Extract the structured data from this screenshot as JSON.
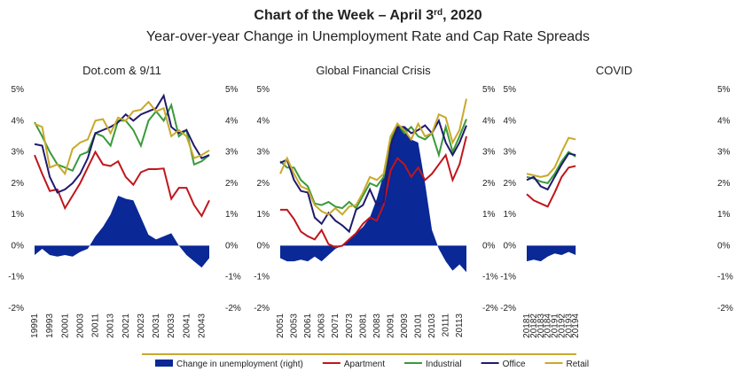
{
  "header": {
    "title_main": "Chart of the Week – April 3",
    "title_sup": "rd",
    "title_end": ", 2020",
    "subtitle": "Year-over-year Change in Unemployment Rate and Cap Rate Spreads"
  },
  "chart_data": [
    {
      "type": "line",
      "title": "Dot.com & 9/11",
      "categories": [
        "19991",
        null,
        "19993",
        null,
        "20001",
        null,
        "20003",
        null,
        "20011",
        null,
        "20013",
        null,
        "20021",
        null,
        "20023",
        null,
        "20031",
        null,
        "20033",
        null,
        "20041",
        null,
        "20043",
        null
      ],
      "ylim": [
        -2,
        5
      ],
      "y2lim": [
        -2,
        5
      ],
      "yticks": [
        {
          "value": 5,
          "label": "5%"
        },
        {
          "value": 4,
          "label": "4%"
        },
        {
          "value": 3,
          "label": "3%"
        },
        {
          "value": 2,
          "label": "2%"
        },
        {
          "value": 1,
          "label": "1%"
        },
        {
          "value": 0,
          "label": "0%"
        },
        {
          "value": -1,
          "label": "-1%"
        },
        {
          "value": -2,
          "label": "-2%"
        }
      ],
      "y2ticks": [
        {
          "value": 5,
          "label": "5%"
        },
        {
          "value": 4,
          "label": "4%"
        },
        {
          "value": 3,
          "label": "3%"
        },
        {
          "value": 2,
          "label": "2%"
        },
        {
          "value": 1,
          "label": "1%"
        },
        {
          "value": 0,
          "label": "0%"
        },
        {
          "value": -1,
          "label": "-1%"
        },
        {
          "value": -2,
          "label": "-2%"
        }
      ],
      "grid": false,
      "series": [
        {
          "name": "Change in unemployment (right)",
          "color": "#0a2896",
          "axis": "y2",
          "kind": "area",
          "values": [
            -0.3,
            -0.1,
            -0.3,
            -0.35,
            -0.3,
            -0.35,
            -0.2,
            -0.1,
            0.3,
            0.6,
            1.0,
            1.6,
            1.5,
            1.45,
            0.9,
            0.35,
            0.2,
            0.3,
            0.4,
            0.0,
            -0.3,
            -0.5,
            -0.7,
            -0.4
          ]
        },
        {
          "name": "Apartment",
          "color": "#c0161c",
          "values": [
            2.9,
            2.3,
            1.75,
            1.8,
            1.2,
            1.6,
            2.0,
            2.5,
            3.0,
            2.6,
            2.55,
            2.7,
            2.2,
            1.95,
            2.35,
            2.45,
            2.45,
            2.47,
            1.5,
            1.85,
            1.85,
            1.3,
            0.95,
            1.45
          ]
        },
        {
          "name": "Industrial",
          "color": "#3a9a3a",
          "values": [
            3.95,
            3.5,
            3.0,
            2.6,
            2.5,
            2.4,
            2.9,
            3.0,
            3.6,
            3.5,
            3.2,
            4.0,
            4.0,
            3.7,
            3.2,
            4.0,
            4.3,
            4.0,
            4.5,
            3.5,
            3.7,
            2.6,
            2.7,
            2.9
          ]
        },
        {
          "name": "Office",
          "color": "#201a6e",
          "values": [
            3.25,
            3.2,
            2.2,
            1.7,
            1.8,
            2.0,
            2.3,
            2.8,
            3.6,
            3.7,
            3.8,
            3.95,
            4.2,
            4.0,
            4.2,
            4.3,
            4.4,
            4.8,
            3.8,
            3.6,
            3.7,
            3.2,
            2.8,
            2.9
          ]
        },
        {
          "name": "Retail",
          "color": "#c9a92b",
          "values": [
            3.9,
            3.8,
            2.5,
            2.6,
            2.3,
            3.1,
            3.3,
            3.4,
            4.0,
            4.05,
            3.6,
            4.1,
            4.0,
            4.3,
            4.35,
            4.6,
            4.3,
            4.4,
            3.5,
            3.7,
            3.5,
            2.8,
            2.9,
            3.05
          ]
        }
      ]
    },
    {
      "type": "line",
      "title": "Global Financial Crisis",
      "categories": [
        "20051",
        null,
        "20053",
        null,
        "20061",
        null,
        "20063",
        null,
        "20071",
        null,
        "20073",
        null,
        "20081",
        null,
        "20083",
        null,
        "20091",
        null,
        "20093",
        null,
        "20101",
        null,
        "20103",
        null,
        "20111",
        null,
        "20113",
        null
      ],
      "ylim": [
        -2,
        5
      ],
      "y2lim": [
        -2,
        5
      ],
      "yticks": [
        {
          "value": 5,
          "label": "5%"
        },
        {
          "value": 4,
          "label": "4%"
        },
        {
          "value": 3,
          "label": "3%"
        },
        {
          "value": 2,
          "label": "2%"
        },
        {
          "value": 1,
          "label": "1%"
        },
        {
          "value": 0,
          "label": "0%"
        },
        {
          "value": -1,
          "label": "-1%"
        },
        {
          "value": -2,
          "label": "-2%"
        }
      ],
      "y2ticks": [
        {
          "value": 5,
          "label": "5%"
        },
        {
          "value": 4,
          "label": "4%"
        },
        {
          "value": 3,
          "label": "3%"
        },
        {
          "value": 2,
          "label": "2%"
        },
        {
          "value": 1,
          "label": "1%"
        },
        {
          "value": 0,
          "label": "0%"
        },
        {
          "value": -1,
          "label": "-1%"
        },
        {
          "value": -2,
          "label": "-2%"
        }
      ],
      "grid": false,
      "series": [
        {
          "name": "Change in unemployment (right)",
          "color": "#0a2896",
          "axis": "y2",
          "kind": "area",
          "values": [
            -0.4,
            -0.5,
            -0.5,
            -0.45,
            -0.5,
            -0.35,
            -0.5,
            -0.3,
            -0.1,
            0.0,
            0.2,
            0.4,
            0.6,
            0.9,
            1.5,
            2.3,
            3.5,
            3.8,
            3.8,
            3.4,
            3.3,
            2.0,
            0.5,
            -0.1,
            -0.5,
            -0.8,
            -0.6,
            -0.85
          ]
        },
        {
          "name": "Apartment",
          "color": "#c0161c",
          "values": [
            1.15,
            1.15,
            0.85,
            0.45,
            0.3,
            0.2,
            0.5,
            0.05,
            -0.05,
            0.0,
            0.2,
            0.4,
            0.7,
            0.9,
            0.8,
            1.3,
            2.4,
            2.8,
            2.6,
            2.2,
            2.5,
            2.1,
            2.3,
            2.6,
            2.9,
            2.1,
            2.6,
            3.5
          ]
        },
        {
          "name": "Industrial",
          "color": "#3a9a3a",
          "values": [
            2.7,
            2.5,
            2.5,
            2.1,
            1.9,
            1.35,
            1.3,
            1.4,
            1.25,
            1.2,
            1.4,
            1.2,
            1.6,
            2.0,
            1.9,
            2.2,
            3.4,
            3.9,
            3.6,
            3.8,
            3.5,
            3.4,
            3.6,
            2.9,
            3.8,
            3.0,
            3.5,
            4.05
          ]
        },
        {
          "name": "Office",
          "color": "#201a6e",
          "values": [
            2.65,
            2.75,
            2.1,
            1.75,
            1.7,
            0.9,
            0.7,
            1.05,
            0.8,
            0.65,
            0.45,
            1.15,
            1.3,
            1.8,
            1.3,
            1.4,
            3.2,
            3.8,
            3.8,
            3.6,
            3.7,
            3.85,
            3.6,
            4.0,
            3.3,
            2.9,
            3.3,
            3.85
          ]
        },
        {
          "name": "Retail",
          "color": "#c9a92b",
          "values": [
            2.3,
            2.8,
            2.3,
            1.9,
            1.8,
            1.3,
            1.1,
            1.0,
            1.2,
            1.0,
            1.25,
            1.3,
            1.7,
            2.2,
            2.1,
            2.3,
            3.5,
            3.9,
            3.7,
            3.4,
            3.9,
            3.5,
            3.6,
            4.2,
            4.1,
            3.3,
            3.7,
            4.7
          ]
        }
      ]
    },
    {
      "type": "line",
      "title": "COVID",
      "categories": [
        "20181",
        "20182",
        "20183",
        "20184",
        "20191",
        "20192",
        "20193",
        "20194"
      ],
      "ylim": [
        -2,
        5
      ],
      "y2lim": [
        -2,
        5
      ],
      "yticks": [
        {
          "value": 5,
          "label": "5%"
        },
        {
          "value": 4,
          "label": "4%"
        },
        {
          "value": 3,
          "label": "3%"
        },
        {
          "value": 2,
          "label": "2%"
        },
        {
          "value": 1,
          "label": "1%"
        },
        {
          "value": 0,
          "label": "0%"
        },
        {
          "value": -1,
          "label": "-1%"
        },
        {
          "value": -2,
          "label": "-2%"
        }
      ],
      "y2ticks": [
        {
          "value": 5,
          "label": "5%"
        },
        {
          "value": 4,
          "label": "4%"
        },
        {
          "value": 3,
          "label": "3%"
        },
        {
          "value": 2,
          "label": "2%"
        },
        {
          "value": 1,
          "label": "1%"
        },
        {
          "value": 0,
          "label": "0%"
        },
        {
          "value": -1,
          "label": "-1%"
        },
        {
          "value": -2,
          "label": "-2%"
        }
      ],
      "grid": false,
      "series": [
        {
          "name": "Change in unemployment (right)",
          "color": "#0a2896",
          "axis": "y2",
          "kind": "area",
          "values": [
            -0.5,
            -0.45,
            -0.5,
            -0.35,
            -0.25,
            -0.3,
            -0.2,
            -0.3
          ]
        },
        {
          "name": "Apartment",
          "color": "#c0161c",
          "values": [
            1.65,
            1.45,
            1.35,
            1.25,
            1.7,
            2.2,
            2.5,
            2.55
          ]
        },
        {
          "name": "Industrial",
          "color": "#3a9a3a",
          "values": [
            2.2,
            2.15,
            2.05,
            2.0,
            2.3,
            2.7,
            3.0,
            2.85
          ]
        },
        {
          "name": "Office",
          "color": "#201a6e",
          "values": [
            2.1,
            2.2,
            1.9,
            1.8,
            2.2,
            2.6,
            2.95,
            2.9
          ]
        },
        {
          "name": "Retail",
          "color": "#c9a92b",
          "values": [
            2.3,
            2.25,
            2.2,
            2.25,
            2.5,
            3.0,
            3.45,
            3.4
          ]
        }
      ]
    }
  ]
}
